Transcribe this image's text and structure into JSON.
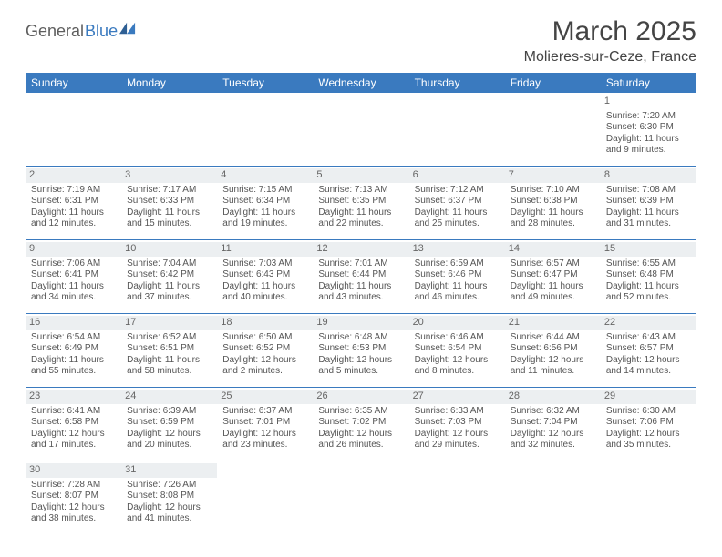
{
  "logo": {
    "part1": "General",
    "part2": "Blue"
  },
  "title": "March 2025",
  "location": "Molieres-sur-Ceze, France",
  "colors": {
    "header_bg": "#3a7abf",
    "header_text": "#ffffff",
    "daynum_bg": "#eceff1",
    "cell_text": "#555555",
    "border": "#3a7abf",
    "title_text": "#444444"
  },
  "weekdays": [
    "Sunday",
    "Monday",
    "Tuesday",
    "Wednesday",
    "Thursday",
    "Friday",
    "Saturday"
  ],
  "weeks": [
    [
      null,
      null,
      null,
      null,
      null,
      null,
      {
        "n": "1",
        "sunrise": "Sunrise: 7:20 AM",
        "sunset": "Sunset: 6:30 PM",
        "daylight1": "Daylight: 11 hours",
        "daylight2": "and 9 minutes."
      }
    ],
    [
      {
        "n": "2",
        "sunrise": "Sunrise: 7:19 AM",
        "sunset": "Sunset: 6:31 PM",
        "daylight1": "Daylight: 11 hours",
        "daylight2": "and 12 minutes."
      },
      {
        "n": "3",
        "sunrise": "Sunrise: 7:17 AM",
        "sunset": "Sunset: 6:33 PM",
        "daylight1": "Daylight: 11 hours",
        "daylight2": "and 15 minutes."
      },
      {
        "n": "4",
        "sunrise": "Sunrise: 7:15 AM",
        "sunset": "Sunset: 6:34 PM",
        "daylight1": "Daylight: 11 hours",
        "daylight2": "and 19 minutes."
      },
      {
        "n": "5",
        "sunrise": "Sunrise: 7:13 AM",
        "sunset": "Sunset: 6:35 PM",
        "daylight1": "Daylight: 11 hours",
        "daylight2": "and 22 minutes."
      },
      {
        "n": "6",
        "sunrise": "Sunrise: 7:12 AM",
        "sunset": "Sunset: 6:37 PM",
        "daylight1": "Daylight: 11 hours",
        "daylight2": "and 25 minutes."
      },
      {
        "n": "7",
        "sunrise": "Sunrise: 7:10 AM",
        "sunset": "Sunset: 6:38 PM",
        "daylight1": "Daylight: 11 hours",
        "daylight2": "and 28 minutes."
      },
      {
        "n": "8",
        "sunrise": "Sunrise: 7:08 AM",
        "sunset": "Sunset: 6:39 PM",
        "daylight1": "Daylight: 11 hours",
        "daylight2": "and 31 minutes."
      }
    ],
    [
      {
        "n": "9",
        "sunrise": "Sunrise: 7:06 AM",
        "sunset": "Sunset: 6:41 PM",
        "daylight1": "Daylight: 11 hours",
        "daylight2": "and 34 minutes."
      },
      {
        "n": "10",
        "sunrise": "Sunrise: 7:04 AM",
        "sunset": "Sunset: 6:42 PM",
        "daylight1": "Daylight: 11 hours",
        "daylight2": "and 37 minutes."
      },
      {
        "n": "11",
        "sunrise": "Sunrise: 7:03 AM",
        "sunset": "Sunset: 6:43 PM",
        "daylight1": "Daylight: 11 hours",
        "daylight2": "and 40 minutes."
      },
      {
        "n": "12",
        "sunrise": "Sunrise: 7:01 AM",
        "sunset": "Sunset: 6:44 PM",
        "daylight1": "Daylight: 11 hours",
        "daylight2": "and 43 minutes."
      },
      {
        "n": "13",
        "sunrise": "Sunrise: 6:59 AM",
        "sunset": "Sunset: 6:46 PM",
        "daylight1": "Daylight: 11 hours",
        "daylight2": "and 46 minutes."
      },
      {
        "n": "14",
        "sunrise": "Sunrise: 6:57 AM",
        "sunset": "Sunset: 6:47 PM",
        "daylight1": "Daylight: 11 hours",
        "daylight2": "and 49 minutes."
      },
      {
        "n": "15",
        "sunrise": "Sunrise: 6:55 AM",
        "sunset": "Sunset: 6:48 PM",
        "daylight1": "Daylight: 11 hours",
        "daylight2": "and 52 minutes."
      }
    ],
    [
      {
        "n": "16",
        "sunrise": "Sunrise: 6:54 AM",
        "sunset": "Sunset: 6:49 PM",
        "daylight1": "Daylight: 11 hours",
        "daylight2": "and 55 minutes."
      },
      {
        "n": "17",
        "sunrise": "Sunrise: 6:52 AM",
        "sunset": "Sunset: 6:51 PM",
        "daylight1": "Daylight: 11 hours",
        "daylight2": "and 58 minutes."
      },
      {
        "n": "18",
        "sunrise": "Sunrise: 6:50 AM",
        "sunset": "Sunset: 6:52 PM",
        "daylight1": "Daylight: 12 hours",
        "daylight2": "and 2 minutes."
      },
      {
        "n": "19",
        "sunrise": "Sunrise: 6:48 AM",
        "sunset": "Sunset: 6:53 PM",
        "daylight1": "Daylight: 12 hours",
        "daylight2": "and 5 minutes."
      },
      {
        "n": "20",
        "sunrise": "Sunrise: 6:46 AM",
        "sunset": "Sunset: 6:54 PM",
        "daylight1": "Daylight: 12 hours",
        "daylight2": "and 8 minutes."
      },
      {
        "n": "21",
        "sunrise": "Sunrise: 6:44 AM",
        "sunset": "Sunset: 6:56 PM",
        "daylight1": "Daylight: 12 hours",
        "daylight2": "and 11 minutes."
      },
      {
        "n": "22",
        "sunrise": "Sunrise: 6:43 AM",
        "sunset": "Sunset: 6:57 PM",
        "daylight1": "Daylight: 12 hours",
        "daylight2": "and 14 minutes."
      }
    ],
    [
      {
        "n": "23",
        "sunrise": "Sunrise: 6:41 AM",
        "sunset": "Sunset: 6:58 PM",
        "daylight1": "Daylight: 12 hours",
        "daylight2": "and 17 minutes."
      },
      {
        "n": "24",
        "sunrise": "Sunrise: 6:39 AM",
        "sunset": "Sunset: 6:59 PM",
        "daylight1": "Daylight: 12 hours",
        "daylight2": "and 20 minutes."
      },
      {
        "n": "25",
        "sunrise": "Sunrise: 6:37 AM",
        "sunset": "Sunset: 7:01 PM",
        "daylight1": "Daylight: 12 hours",
        "daylight2": "and 23 minutes."
      },
      {
        "n": "26",
        "sunrise": "Sunrise: 6:35 AM",
        "sunset": "Sunset: 7:02 PM",
        "daylight1": "Daylight: 12 hours",
        "daylight2": "and 26 minutes."
      },
      {
        "n": "27",
        "sunrise": "Sunrise: 6:33 AM",
        "sunset": "Sunset: 7:03 PM",
        "daylight1": "Daylight: 12 hours",
        "daylight2": "and 29 minutes."
      },
      {
        "n": "28",
        "sunrise": "Sunrise: 6:32 AM",
        "sunset": "Sunset: 7:04 PM",
        "daylight1": "Daylight: 12 hours",
        "daylight2": "and 32 minutes."
      },
      {
        "n": "29",
        "sunrise": "Sunrise: 6:30 AM",
        "sunset": "Sunset: 7:06 PM",
        "daylight1": "Daylight: 12 hours",
        "daylight2": "and 35 minutes."
      }
    ],
    [
      {
        "n": "30",
        "sunrise": "Sunrise: 7:28 AM",
        "sunset": "Sunset: 8:07 PM",
        "daylight1": "Daylight: 12 hours",
        "daylight2": "and 38 minutes."
      },
      {
        "n": "31",
        "sunrise": "Sunrise: 7:26 AM",
        "sunset": "Sunset: 8:08 PM",
        "daylight1": "Daylight: 12 hours",
        "daylight2": "and 41 minutes."
      },
      null,
      null,
      null,
      null,
      null
    ]
  ]
}
